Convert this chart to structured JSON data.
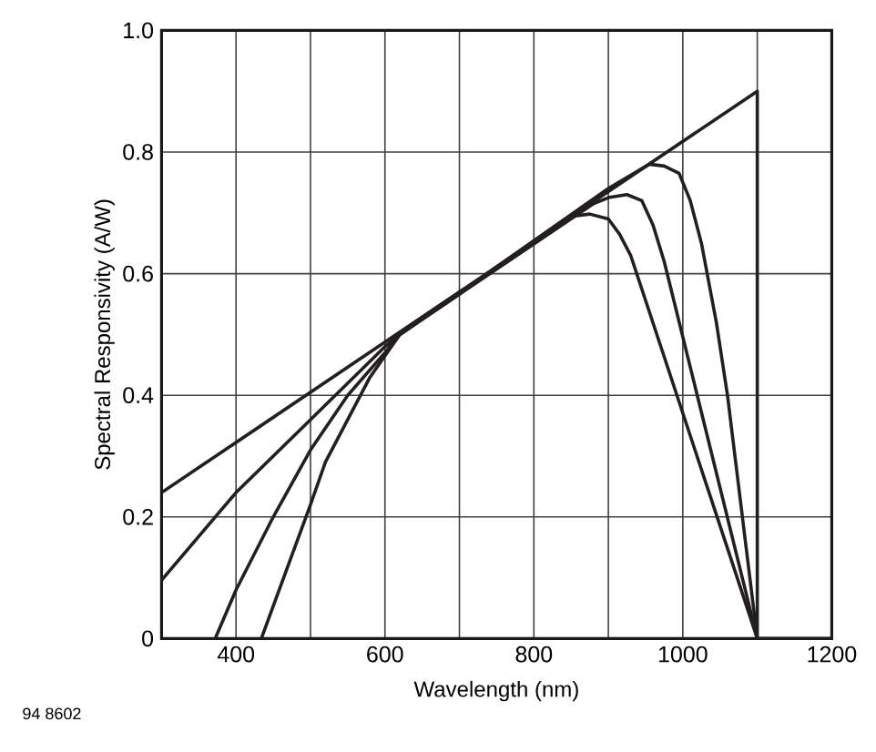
{
  "chart_data": {
    "type": "line",
    "xlabel": "Wavelength (nm)",
    "ylabel": "Spectral Responsivity (A/W)",
    "xlim": [
      300,
      1200
    ],
    "ylim": [
      0,
      1.0
    ],
    "xticks": [
      {
        "value": 300,
        "label": null
      },
      400,
      {
        "value": 500,
        "label": null
      },
      600,
      {
        "value": 700,
        "label": null
      },
      800,
      {
        "value": 900,
        "label": null
      },
      1000,
      {
        "value": 1100,
        "label": null
      },
      1200
    ],
    "yticks": [
      0,
      0.2,
      0.4,
      0.6,
      0.8,
      {
        "value": 1.0,
        "label": "1.0"
      }
    ],
    "grid": true,
    "marker": "none",
    "line_style": "solid",
    "annotations": [
      "94 8602"
    ],
    "series": [
      {
        "color": "#231f20",
        "x": [
          300,
          1100,
          1100,
          1200
        ],
        "values": [
          0.24,
          0.9,
          0,
          0
        ]
      },
      {
        "color": "#231f20",
        "x": [
          300,
          400,
          500,
          550,
          600,
          620,
          900,
          955,
          975,
          995,
          1010,
          1025,
          1045,
          1060,
          1100
        ],
        "values": [
          0.096,
          0.24,
          0.36,
          0.42,
          0.48,
          0.5,
          0.74,
          0.78,
          0.777,
          0.765,
          0.72,
          0.65,
          0.52,
          0.4,
          0
        ]
      },
      {
        "color": "#231f20",
        "x": [
          372,
          400,
          450,
          500,
          550,
          600,
          620,
          880,
          900,
          925,
          945,
          960,
          975,
          1100
        ],
        "values": [
          0,
          0.08,
          0.2,
          0.31,
          0.4,
          0.47,
          0.5,
          0.715,
          0.725,
          0.73,
          0.72,
          0.68,
          0.62,
          0
        ]
      },
      {
        "color": "#231f20",
        "x": [
          434,
          470,
          500,
          520,
          550,
          580,
          620,
          850,
          875,
          900,
          915,
          930,
          1100
        ],
        "values": [
          0,
          0.12,
          0.22,
          0.29,
          0.36,
          0.43,
          0.5,
          0.694,
          0.698,
          0.69,
          0.665,
          0.63,
          0
        ]
      }
    ]
  }
}
